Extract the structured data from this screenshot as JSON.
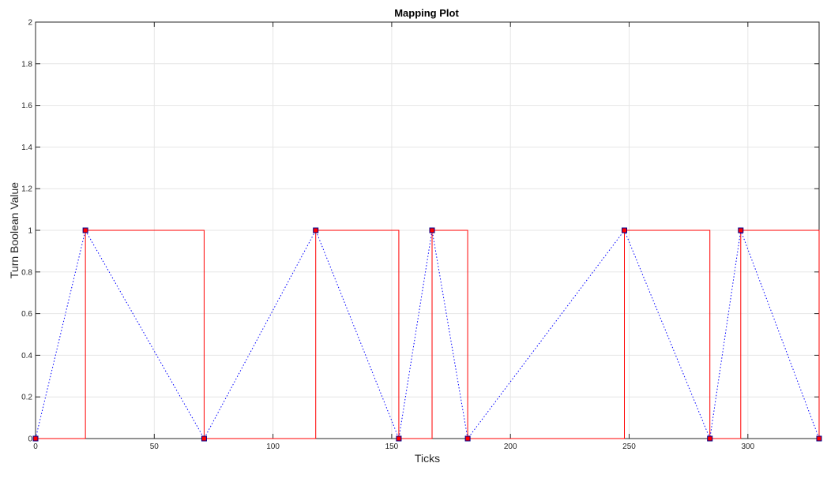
{
  "chart_data": {
    "type": "line",
    "title": "Mapping Plot",
    "xlabel": "Ticks",
    "ylabel": "Turn Boolean Value",
    "xlim": [
      0,
      330
    ],
    "ylim": [
      0,
      2
    ],
    "xticks": [
      0,
      50,
      100,
      150,
      200,
      250,
      300
    ],
    "yticks": [
      0,
      0.2,
      0.4,
      0.6,
      0.8,
      1,
      1.2,
      1.4,
      1.6,
      1.8,
      2
    ],
    "grid": true,
    "series": [
      {
        "style": "dotted-line-with-square-markers",
        "color": "#0000ff",
        "marker_color": "#ff0000",
        "marker_edge": "#00008b",
        "points": [
          [
            0,
            0
          ],
          [
            21,
            1
          ],
          [
            71,
            0
          ],
          [
            118,
            1
          ],
          [
            153,
            0
          ],
          [
            167,
            1
          ],
          [
            182,
            0
          ],
          [
            248,
            1
          ],
          [
            284,
            0
          ],
          [
            297,
            1
          ],
          [
            330,
            0
          ]
        ]
      },
      {
        "style": "step",
        "color": "#ff0000",
        "points": [
          [
            0,
            0
          ],
          [
            21,
            0
          ],
          [
            21,
            1
          ],
          [
            71,
            1
          ],
          [
            71,
            0
          ],
          [
            118,
            0
          ],
          [
            118,
            1
          ],
          [
            153,
            1
          ],
          [
            153,
            0
          ],
          [
            167,
            0
          ],
          [
            167,
            1
          ],
          [
            182,
            1
          ],
          [
            182,
            0
          ],
          [
            248,
            0
          ],
          [
            248,
            1
          ],
          [
            284,
            1
          ],
          [
            284,
            0
          ],
          [
            297,
            0
          ],
          [
            297,
            1
          ],
          [
            330,
            1
          ],
          [
            330,
            0
          ]
        ]
      }
    ]
  }
}
